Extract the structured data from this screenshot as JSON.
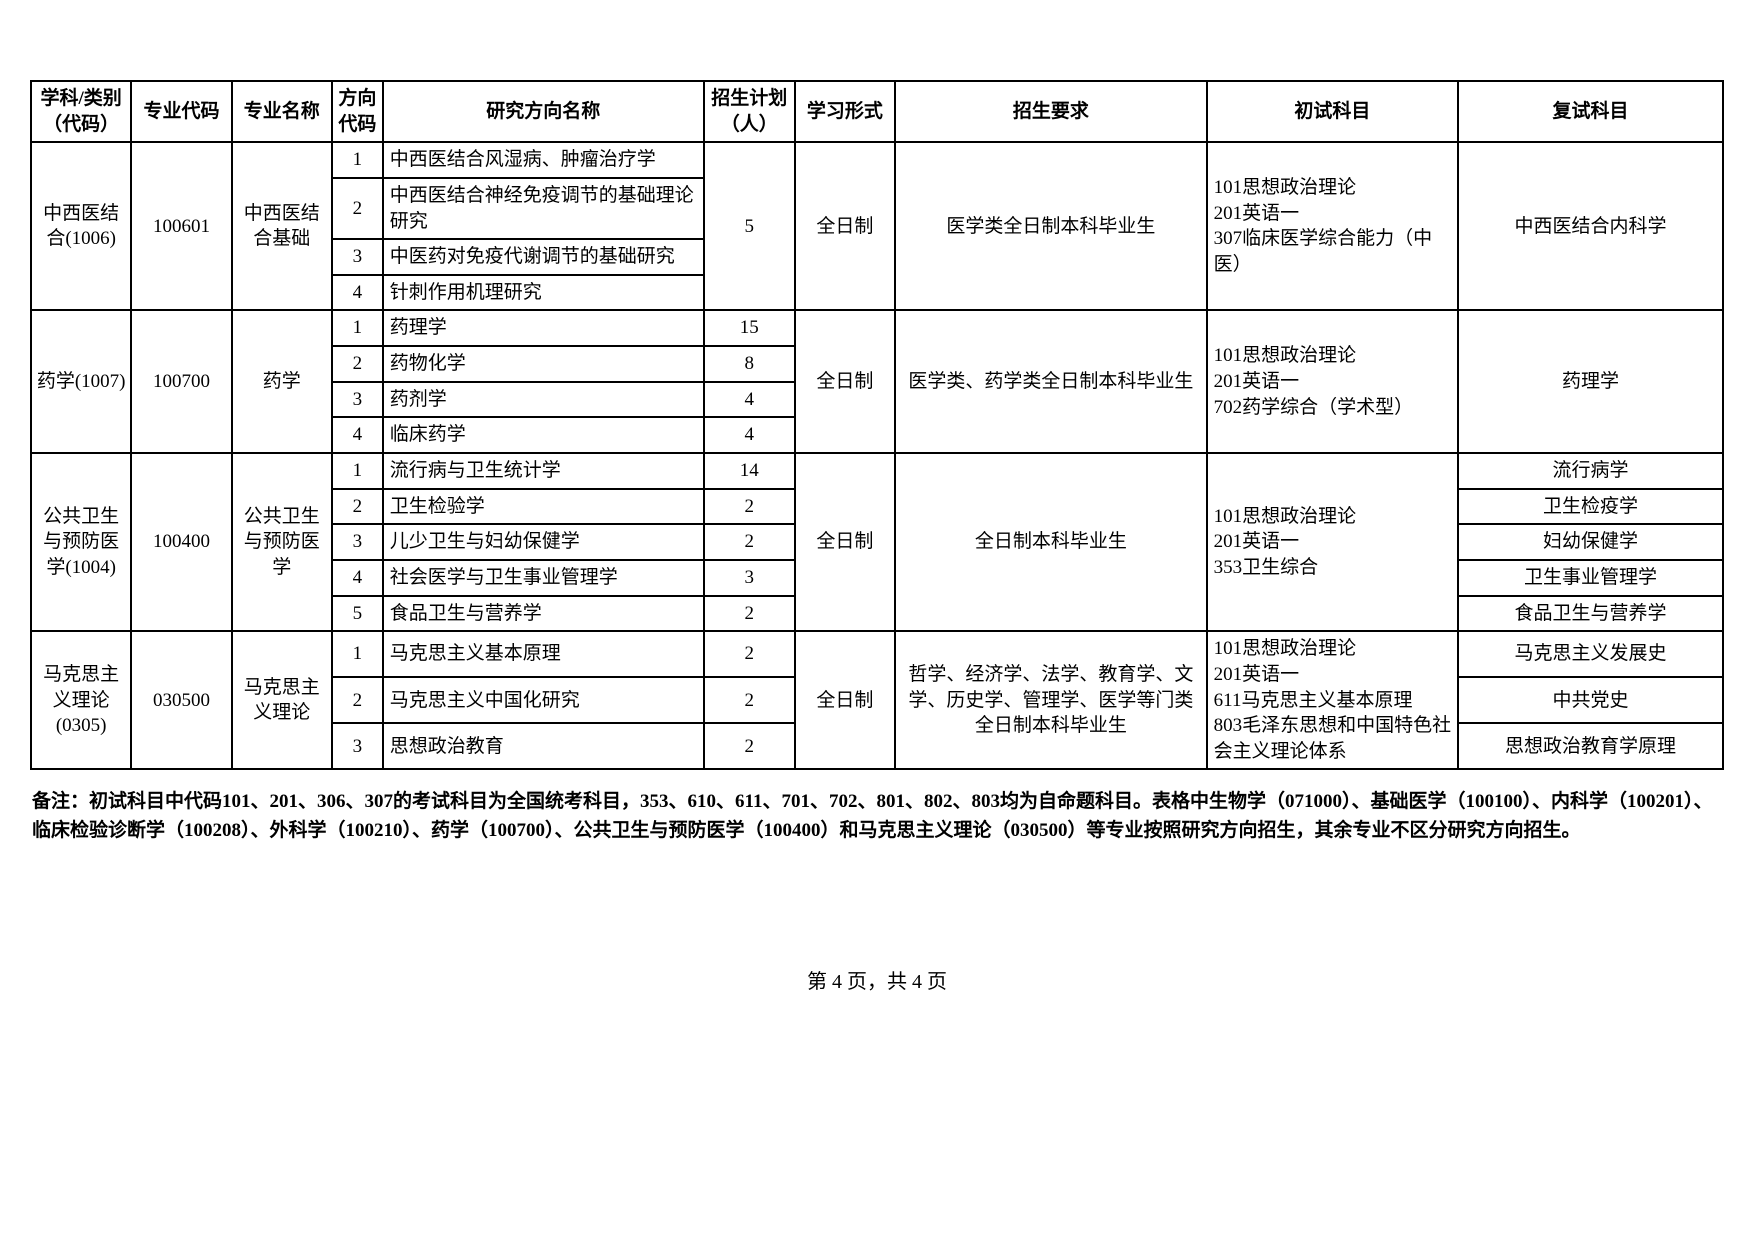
{
  "headers": {
    "discipline": "学科/类别（代码）",
    "major_code": "专业代码",
    "major_name": "专业名称",
    "dir_code": "方向代码",
    "dir_name": "研究方向名称",
    "plan": "招生计划（人）",
    "form": "学习形式",
    "req": "招生要求",
    "exam1": "初试科目",
    "exam2": "复试科目"
  },
  "groups": [
    {
      "discipline": "中西医结合(1006)",
      "major_code": "100601",
      "major_name": "中西医结合基础",
      "plan": "5",
      "form": "全日制",
      "req": "医学类全日制本科毕业生",
      "exam1": "101思想政治理论\n201英语一\n307临床医学综合能力（中医）",
      "dirs": [
        {
          "code": "1",
          "name": "中西医结合风湿病、肿瘤治疗学",
          "exam2": "中西医结合内科学"
        },
        {
          "code": "2",
          "name": "中西医结合神经免疫调节的基础理论研究",
          "exam2": "中西医结合内科学"
        },
        {
          "code": "3",
          "name": "中医药对免疫代谢调节的基础研究",
          "exam2": "中西医结合内科学"
        },
        {
          "code": "4",
          "name": "针刺作用机理研究",
          "exam2": "中西医结合内科学"
        }
      ],
      "exam2_merged": "中西医结合内科学",
      "plan_merged": true
    },
    {
      "discipline": "药学(1007)",
      "major_code": "100700",
      "major_name": "药学",
      "form": "全日制",
      "req": "医学类、药学类全日制本科毕业生",
      "exam1": "101思想政治理论\n201英语一\n702药学综合（学术型）",
      "dirs": [
        {
          "code": "1",
          "name": "药理学",
          "plan": "15"
        },
        {
          "code": "2",
          "name": "药物化学",
          "plan": "8"
        },
        {
          "code": "3",
          "name": "药剂学",
          "plan": "4"
        },
        {
          "code": "4",
          "name": "临床药学",
          "plan": "4"
        }
      ],
      "exam2_merged": "药理学",
      "plan_merged": false
    },
    {
      "discipline": "公共卫生与预防医学(1004)",
      "major_code": "100400",
      "major_name": "公共卫生与预防医学",
      "form": "全日制",
      "req": "全日制本科毕业生",
      "exam1": "101思想政治理论\n201英语一\n353卫生综合",
      "dirs": [
        {
          "code": "1",
          "name": "流行病与卫生统计学",
          "plan": "14",
          "exam2": "流行病学"
        },
        {
          "code": "2",
          "name": "卫生检验学",
          "plan": "2",
          "exam2": "卫生检疫学"
        },
        {
          "code": "3",
          "name": "儿少卫生与妇幼保健学",
          "plan": "2",
          "exam2": "妇幼保健学"
        },
        {
          "code": "4",
          "name": "社会医学与卫生事业管理学",
          "plan": "3",
          "exam2": "卫生事业管理学"
        },
        {
          "code": "5",
          "name": "食品卫生与营养学",
          "plan": "2",
          "exam2": "食品卫生与营养学"
        }
      ],
      "exam2_merged": null,
      "plan_merged": false
    },
    {
      "discipline": "马克思主义理论(0305)",
      "major_code": "030500",
      "major_name": "马克思主义理论",
      "form": "全日制",
      "req": "哲学、经济学、法学、教育学、文学、历史学、管理学、医学等门类全日制本科毕业生",
      "exam1": "101思想政治理论\n201英语一\n611马克思主义基本原理\n803毛泽东思想和中国特色社会主义理论体系",
      "dirs": [
        {
          "code": "1",
          "name": "马克思主义基本原理",
          "plan": "2",
          "exam2": "马克思主义发展史"
        },
        {
          "code": "2",
          "name": "马克思主义中国化研究",
          "plan": "2",
          "exam2": "中共党史"
        },
        {
          "code": "3",
          "name": "思想政治教育",
          "plan": "2",
          "exam2": "思想政治教育学原理"
        }
      ],
      "exam2_merged": null,
      "plan_merged": false
    }
  ],
  "note": "备注：初试科目中代码101、201、306、307的考试科目为全国统考科目，353、610、611、701、702、801、802、803均为自命题科目。表格中生物学（071000）、基础医学（100100）、内科学（100201）、临床检验诊断学（100208）、外科学（100210）、药学（100700）、公共卫生与预防医学（100400）和马克思主义理论（030500）等专业按照研究方向招生，其余专业不区分研究方向招生。",
  "pager": "第 4 页，共 4 页",
  "style": {
    "font_size_cell": 19,
    "border_color": "#000000",
    "background": "#ffffff"
  }
}
